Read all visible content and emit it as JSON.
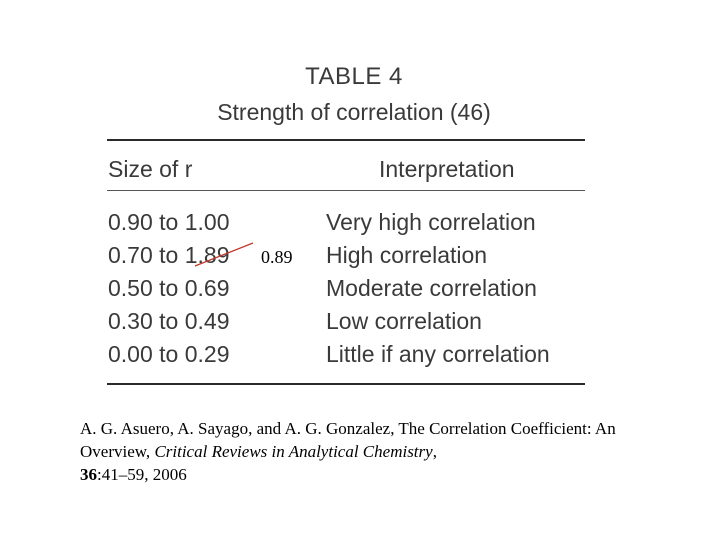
{
  "table": {
    "title": "TABLE 4",
    "subtitle": "Strength of correlation (46)",
    "headers": {
      "size": "Size of r",
      "interpretation": "Interpretation"
    },
    "rows": [
      {
        "size": "0.90 to 1.00",
        "interpretation": "Very high correlation"
      },
      {
        "size": "0.70 to 1.89",
        "interpretation": "High correlation"
      },
      {
        "size": "0.50 to 0.69",
        "interpretation": "Moderate correlation"
      },
      {
        "size": "0.30 to 0.49",
        "interpretation": "Low correlation"
      },
      {
        "size": "0.00 to 0.29",
        "interpretation": "Little if any correlation"
      }
    ]
  },
  "annotation": {
    "correction": "0.89",
    "strike_color": "#c0392b"
  },
  "citation": {
    "authors": "A. G. Asuero, A. Sayago, and A. G. Gonzalez, The Correlation Coefficient: An Overview, ",
    "journal": "Critical Reviews in Analytical Chemistry",
    "sep": ", ",
    "volume": "36",
    "pages": ":41–59, 2006"
  }
}
